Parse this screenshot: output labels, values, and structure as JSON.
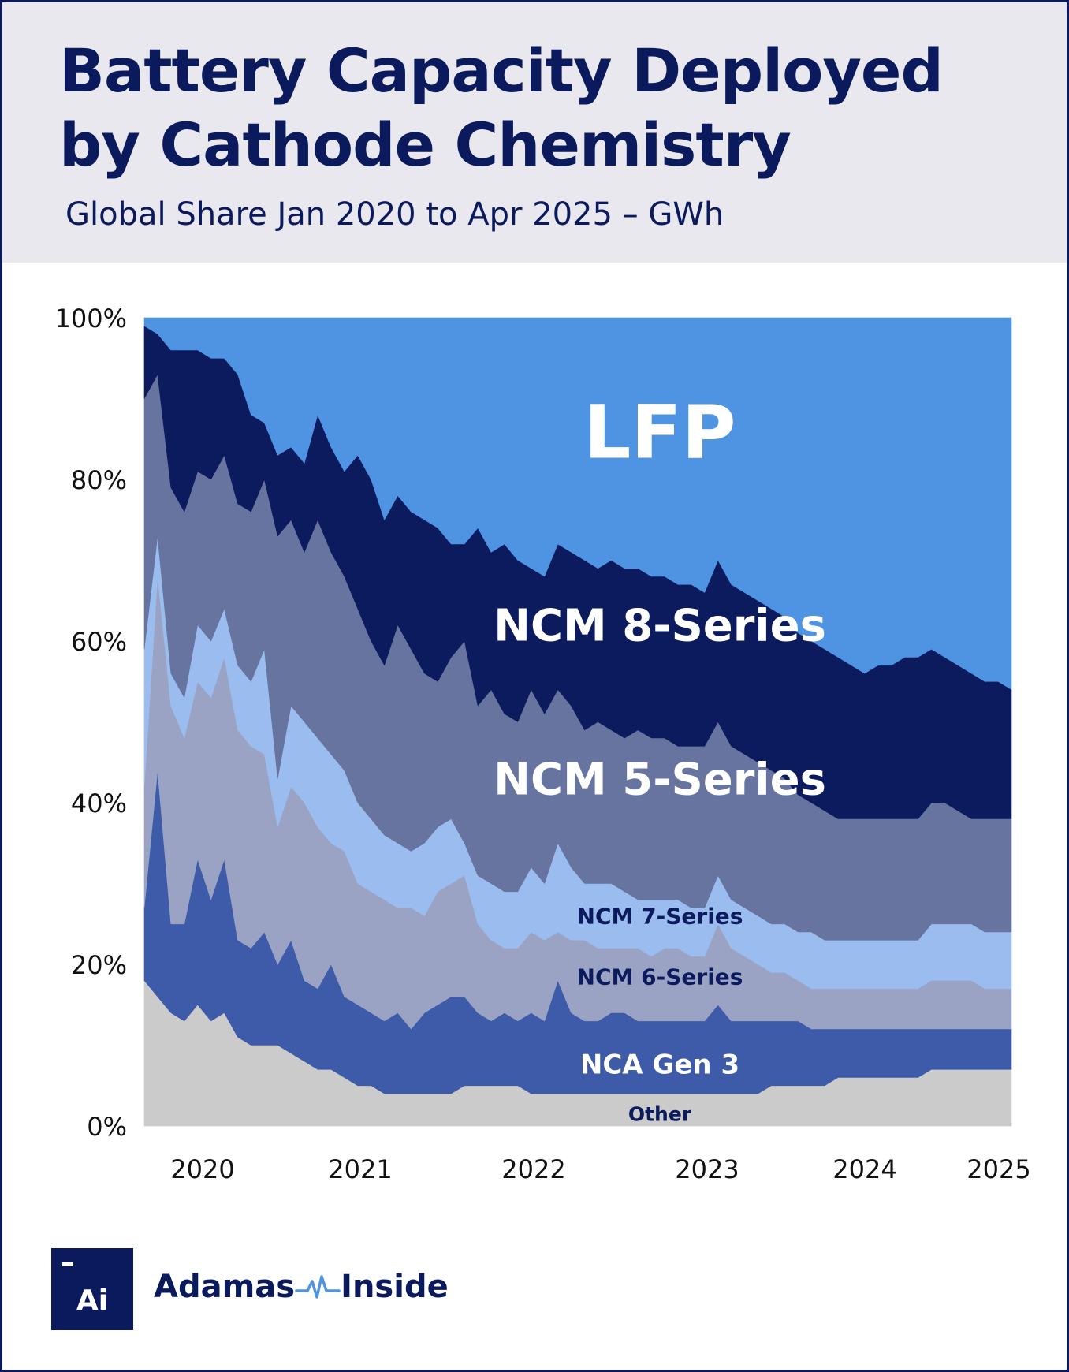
{
  "header": {
    "title": "Battery Capacity Deployed by Cathode Chemistry",
    "subtitle": "Global Share Jan 2020 to Apr 2025 – GWh"
  },
  "brand": {
    "logo_text": "Ai",
    "name_left": "Adamas",
    "name_right": "Inside"
  },
  "chart_data": {
    "type": "area",
    "stacked": true,
    "x_start": "2019-11",
    "x_end": "2025-04",
    "x_domain": [
      2019.83,
      2025.33
    ],
    "xticks": [
      {
        "x": 2020.2,
        "label": "2020"
      },
      {
        "x": 2021.2,
        "label": "2021"
      },
      {
        "x": 2022.3,
        "label": "2022"
      },
      {
        "x": 2023.4,
        "label": "2023"
      },
      {
        "x": 2024.4,
        "label": "2024"
      },
      {
        "x": 2025.25,
        "label": "2025"
      }
    ],
    "ylim": [
      0,
      100
    ],
    "yticks": [
      {
        "v": 0,
        "label": "0%"
      },
      {
        "v": 20,
        "label": "20%"
      },
      {
        "v": 40,
        "label": "40%"
      },
      {
        "v": 60,
        "label": "60%"
      },
      {
        "v": 80,
        "label": "80%"
      },
      {
        "v": 100,
        "label": "100%"
      }
    ],
    "grid": true,
    "colors": {
      "Other": "#cbcbcb",
      "NCA Gen 3": "#3d5ba8",
      "NCM 6-Series": "#9aa3c4",
      "NCM 7-Series": "#9abcee",
      "NCM 5-Series": "#66749f",
      "NCM 8-Series": "#0c1a5e",
      "LFP": "#4f93e3"
    },
    "cumulative_boundaries": {
      "Other": [
        18,
        16,
        14,
        13,
        15,
        13,
        14,
        11,
        10,
        10,
        10,
        9,
        8,
        7,
        7,
        6,
        5,
        5,
        4,
        4,
        4,
        4,
        4,
        4,
        5,
        5,
        5,
        5,
        5,
        4,
        4,
        4,
        4,
        4,
        4,
        4,
        4,
        4,
        4,
        4,
        4,
        4,
        4,
        4,
        4,
        4,
        4,
        5,
        5,
        5,
        5,
        5,
        6,
        6,
        6,
        6,
        6,
        6,
        6,
        7,
        7,
        7,
        7,
        7,
        7,
        7
      ],
      "NCA Gen 3": [
        27,
        44,
        25,
        25,
        33,
        28,
        33,
        23,
        22,
        24,
        20,
        23,
        18,
        17,
        20,
        16,
        15,
        14,
        13,
        14,
        12,
        14,
        15,
        16,
        16,
        14,
        13,
        14,
        13,
        14,
        13,
        18,
        14,
        13,
        13,
        14,
        14,
        13,
        13,
        13,
        13,
        13,
        13,
        15,
        13,
        13,
        13,
        13,
        13,
        13,
        12,
        12,
        12,
        12,
        12,
        12,
        12,
        12,
        12,
        12,
        12,
        12,
        12,
        12,
        12,
        12
      ],
      "NCM 6-Series": [
        42,
        68,
        52,
        48,
        55,
        53,
        58,
        49,
        47,
        46,
        37,
        42,
        40,
        37,
        35,
        34,
        30,
        29,
        28,
        27,
        27,
        26,
        29,
        30,
        31,
        25,
        23,
        22,
        22,
        24,
        23,
        24,
        23,
        23,
        22,
        22,
        22,
        22,
        21,
        22,
        22,
        21,
        21,
        25,
        22,
        21,
        20,
        19,
        19,
        18,
        17,
        17,
        17,
        17,
        17,
        17,
        17,
        17,
        17,
        18,
        18,
        18,
        18,
        17,
        17,
        17
      ],
      "NCM 7-Series": [
        59,
        73,
        56,
        53,
        62,
        60,
        64,
        57,
        55,
        59,
        43,
        52,
        50,
        48,
        46,
        44,
        40,
        38,
        36,
        35,
        34,
        35,
        37,
        38,
        35,
        31,
        30,
        29,
        29,
        32,
        30,
        35,
        32,
        30,
        30,
        30,
        29,
        28,
        28,
        28,
        28,
        27,
        27,
        31,
        28,
        27,
        26,
        25,
        25,
        24,
        24,
        23,
        23,
        23,
        23,
        23,
        23,
        23,
        23,
        25,
        25,
        25,
        25,
        24,
        24,
        24
      ],
      "NCM 5-Series": [
        90,
        93,
        79,
        76,
        81,
        80,
        83,
        77,
        76,
        80,
        73,
        75,
        71,
        75,
        71,
        68,
        64,
        60,
        57,
        62,
        59,
        56,
        55,
        58,
        60,
        52,
        54,
        51,
        50,
        54,
        51,
        54,
        52,
        49,
        50,
        49,
        48,
        49,
        48,
        48,
        47,
        47,
        47,
        50,
        47,
        46,
        45,
        44,
        43,
        41,
        40,
        39,
        38,
        38,
        38,
        38,
        38,
        38,
        38,
        40,
        40,
        39,
        38,
        38,
        38,
        38
      ],
      "NCM 8-Series": [
        99,
        98,
        96,
        96,
        96,
        95,
        95,
        93,
        88,
        87,
        83,
        84,
        82,
        88,
        84,
        81,
        83,
        80,
        75,
        78,
        76,
        75,
        74,
        72,
        72,
        74,
        71,
        72,
        70,
        69,
        68,
        72,
        71,
        70,
        69,
        70,
        69,
        69,
        68,
        68,
        67,
        67,
        66,
        70,
        67,
        66,
        65,
        64,
        63,
        61,
        60,
        59,
        58,
        57,
        56,
        57,
        57,
        58,
        58,
        59,
        58,
        57,
        56,
        55,
        55,
        54
      ],
      "LFP": [
        100,
        100,
        100,
        100,
        100,
        100,
        100,
        100,
        100,
        100,
        100,
        100,
        100,
        100,
        100,
        100,
        100,
        100,
        100,
        100,
        100,
        100,
        100,
        100,
        100,
        100,
        100,
        100,
        100,
        100,
        100,
        100,
        100,
        100,
        100,
        100,
        100,
        100,
        100,
        100,
        100,
        100,
        100,
        100,
        100,
        100,
        100,
        100,
        100,
        100,
        100,
        100,
        100,
        100,
        100,
        100,
        100,
        100,
        100,
        100,
        100,
        100,
        100,
        100,
        100,
        100
      ]
    },
    "series_order": [
      "Other",
      "NCA Gen 3",
      "NCM 6-Series",
      "NCM 7-Series",
      "NCM 5-Series",
      "NCM 8-Series",
      "LFP"
    ],
    "annotations": [
      {
        "text": "LFP",
        "x": 2023.1,
        "y": 86,
        "size": "xl",
        "color": "#ffffff"
      },
      {
        "text": "NCM 8-Series",
        "x": 2023.1,
        "y": 62,
        "size": "lg",
        "color": "#ffffff"
      },
      {
        "text": "NCM 5-Series",
        "x": 2023.1,
        "y": 43,
        "size": "lg",
        "color": "#ffffff"
      },
      {
        "text": "NCM 7-Series",
        "x": 2023.1,
        "y": 26,
        "size": "sm",
        "color": "#0c1a5e"
      },
      {
        "text": "NCM 6-Series",
        "x": 2023.1,
        "y": 18.5,
        "size": "sm",
        "color": "#0c1a5e"
      },
      {
        "text": "NCA Gen 3",
        "x": 2023.1,
        "y": 7.7,
        "size": "md",
        "color": "#ffffff"
      },
      {
        "text": "Other",
        "x": 2023.1,
        "y": 1.5,
        "size": "xs",
        "color": "#0c1a5e"
      }
    ]
  }
}
